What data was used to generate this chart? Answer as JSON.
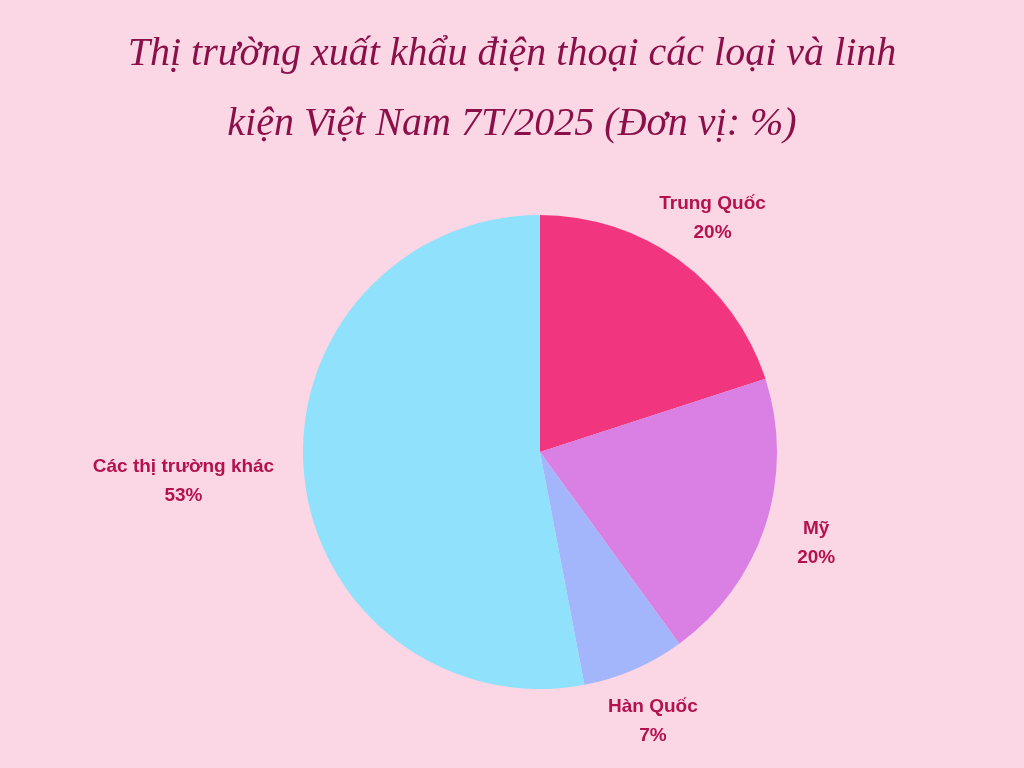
{
  "chart_data": {
    "type": "pie",
    "title": "Thị trường xuất khẩu điện thoại các loại và linh kiện Việt Nam 7T/2025 (Đơn vị: %)",
    "categories": [
      "Trung Quốc",
      "Mỹ",
      "Hàn Quốc",
      "Các thị trường khác"
    ],
    "values": [
      20,
      20,
      7,
      53
    ],
    "value_labels": [
      "20%",
      "20%",
      "7%",
      "53%"
    ],
    "colors": [
      "#f2357f",
      "#da7fe3",
      "#a3b6fb",
      "#8fe1fc"
    ],
    "legend": false
  }
}
